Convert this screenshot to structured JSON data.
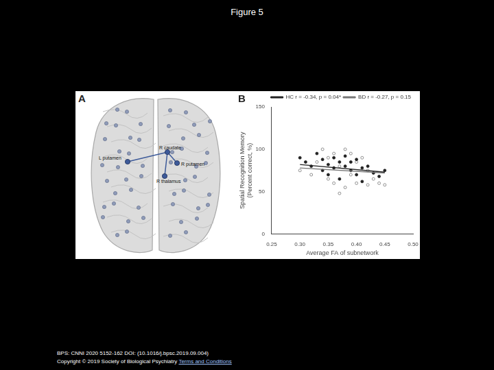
{
  "page": {
    "title": "Figure 5",
    "footer": "BPS: CNNI 2020 5152-162 DOI: (10.1016/j.bpsc.2019.09.004)",
    "copyright": "Copyright © 2019 Society of Biological Psychiatry",
    "link": "Terms and Conditions"
  },
  "panel_a": {
    "label": "A",
    "nodes": [
      {
        "label": "R caudate"
      },
      {
        "label": "L putamen"
      },
      {
        "label": "R putamen"
      },
      {
        "label": "R thalamus"
      }
    ],
    "edges": [
      [
        "L putamen",
        "R caudate"
      ],
      [
        "R caudate",
        "R putamen"
      ],
      [
        "R caudate",
        "R thalamus"
      ]
    ]
  },
  "chart_data": {
    "type": "scatter",
    "title": "B",
    "xlabel": "Average FA of subnetwork",
    "ylabel": [
      "Spatial Recognition Memory",
      "(Percent correct, %)"
    ],
    "xlim": [
      0.25,
      0.5
    ],
    "xticks": [
      {
        "value": 0.25,
        "label": "0.25"
      },
      {
        "value": 0.3,
        "label": "0.30"
      },
      {
        "value": 0.35,
        "label": "0.35"
      },
      {
        "value": 0.4,
        "label": "0.40"
      },
      {
        "value": 0.45,
        "label": "0.45"
      },
      {
        "value": 0.5,
        "label": "0.50"
      }
    ],
    "ylim": [
      0,
      150
    ],
    "yticks": [
      0,
      50,
      100,
      150
    ],
    "grid": false,
    "legend": "top-right",
    "series": [
      {
        "name": "HC r = -0.34, p = 0.04*",
        "color": "#222222",
        "marker": "filled_circle",
        "line_style": "solid",
        "x": [
          0.3,
          0.31,
          0.32,
          0.33,
          0.34,
          0.34,
          0.35,
          0.35,
          0.36,
          0.36,
          0.37,
          0.37,
          0.38,
          0.38,
          0.39,
          0.39,
          0.4,
          0.4,
          0.41,
          0.41,
          0.42,
          0.43,
          0.44,
          0.45
        ],
        "values": [
          90,
          85,
          80,
          95,
          88,
          75,
          82,
          70,
          90,
          78,
          85,
          65,
          80,
          92,
          75,
          85,
          70,
          88,
          78,
          62,
          80,
          72,
          68,
          75
        ],
        "fit_x": [
          0.3,
          0.45
        ],
        "fit_values": [
          82,
          73
        ]
      },
      {
        "name": "BD r = -0.27, p = 0.15",
        "color": "#777777",
        "marker": "open_circle",
        "line_style": "solid",
        "x": [
          0.3,
          0.32,
          0.33,
          0.34,
          0.35,
          0.35,
          0.36,
          0.36,
          0.37,
          0.37,
          0.38,
          0.38,
          0.39,
          0.39,
          0.4,
          0.4,
          0.41,
          0.42,
          0.42,
          0.43,
          0.44,
          0.45
        ],
        "values": [
          75,
          70,
          85,
          100,
          65,
          90,
          60,
          95,
          48,
          80,
          55,
          100,
          70,
          95,
          60,
          85,
          90,
          58,
          75,
          65,
          60,
          58
        ],
        "fit_x": [
          0.3,
          0.45
        ],
        "fit_values": [
          78,
          72
        ]
      }
    ]
  }
}
